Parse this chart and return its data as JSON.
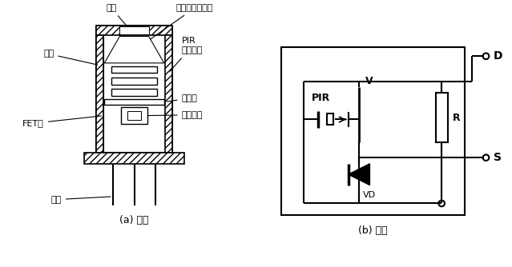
{
  "bg_color": "#ffffff",
  "line_color": "#000000",
  "fig_width": 6.39,
  "fig_height": 3.34,
  "label_窗口": "窗口",
  "label_菲涅尔": "菲涅尔滤光透镜",
  "label_外壳": "外壳",
  "label_PIR": "PIR\n热电元件",
  "label_FET": "FET管",
  "label_支承环": "支承环",
  "label_电路元件": "电路元件",
  "label_引脚": "引脚",
  "label_a": "(a) 结构",
  "label_b": "(b) 内部",
  "label_PIR_circ": "PIR",
  "label_V": "V",
  "label_R": "R",
  "label_VD": "VD",
  "label_D": "D",
  "label_S": "S",
  "font_size_label": 8,
  "font_size_caption": 9
}
